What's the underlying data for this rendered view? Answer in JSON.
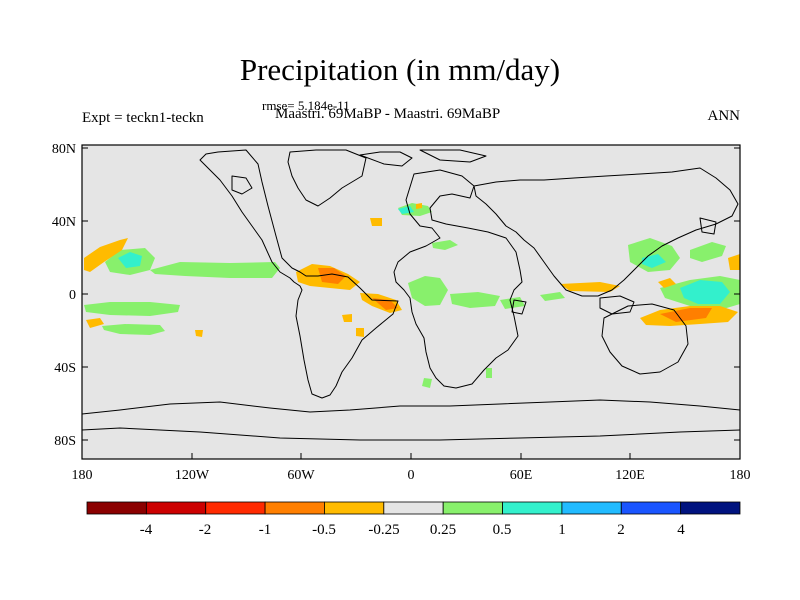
{
  "plot": {
    "title": "Precipitation (in mm/day)",
    "rmse": "rmse= 5.184e-11",
    "left_label": "Expt = teckn1-teckn",
    "center_label": "Maastri.  69MaBP - Maastri.  69MaBP",
    "right_label": "ANN",
    "lat_labels": [
      "80N",
      "40N",
      "0",
      "40S",
      "80S"
    ],
    "lon_labels": [
      "180",
      "120W",
      "60W",
      "0",
      "60E",
      "120E",
      "180"
    ],
    "colors": {
      "background_field": "#e5e5e5",
      "coastline": "#000000"
    }
  },
  "colorbar": {
    "colors": [
      "#8b0000",
      "#cc0000",
      "#ff2a00",
      "#ff7f00",
      "#ffbb00",
      "#e5e5e5",
      "#88f06c",
      "#33f0cc",
      "#22bbff",
      "#1a55ff",
      "#00137f"
    ],
    "labels": [
      "-4",
      "-2",
      "-1",
      "-0.5",
      "-0.25",
      "0.25",
      "0.5",
      "1",
      "2",
      "4"
    ]
  }
}
